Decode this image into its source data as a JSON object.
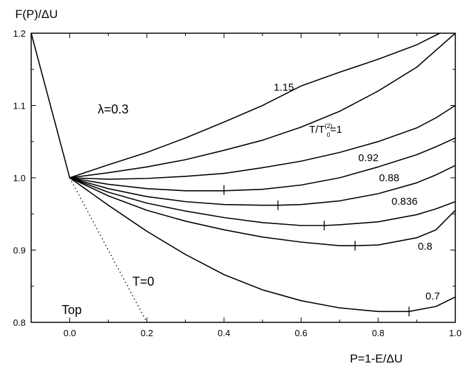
{
  "chart_data": {
    "type": "line",
    "ylabel": "F(P)/ΔU",
    "xlabel": "P=1-E/ΔU",
    "xlim": [
      -0.1,
      1.0
    ],
    "ylim": [
      0.8,
      1.2
    ],
    "xticks": [
      "0.0",
      "0.2",
      "0.4",
      "0.6",
      "0.8",
      "1.0"
    ],
    "yticks": [
      "0.8",
      "0.9",
      "1.0",
      "1.1",
      "1.2"
    ],
    "grid": false,
    "annotations": {
      "lambda": "λ=0.3",
      "t_zero": "T=0",
      "top": "Top",
      "ratio_pre": "T/T",
      "ratio_sup": "(2)",
      "ratio_sub": "0",
      "ratio_post": "=1"
    },
    "apex_line": {
      "x": [
        -0.1,
        0.0
      ],
      "y": [
        1.2,
        1.0
      ]
    },
    "t0_line": {
      "x": [
        0.0,
        0.2
      ],
      "y": [
        1.0,
        0.8
      ]
    },
    "series": [
      {
        "label": "1.15",
        "x": [
          0.0,
          0.1,
          0.2,
          0.3,
          0.4,
          0.5,
          0.6,
          0.7,
          0.8,
          0.9,
          0.96
        ],
        "y": [
          1.0,
          1.018,
          1.035,
          1.055,
          1.077,
          1.1,
          1.127,
          1.146,
          1.164,
          1.184,
          1.2
        ]
      },
      {
        "label": "",
        "x": [
          0.0,
          0.1,
          0.2,
          0.3,
          0.4,
          0.5,
          0.6,
          0.7,
          0.8,
          0.9,
          1.0
        ],
        "y": [
          1.0,
          1.007,
          1.015,
          1.025,
          1.038,
          1.052,
          1.07,
          1.092,
          1.12,
          1.153,
          1.2
        ]
      },
      {
        "label": "0.92",
        "x": [
          0.0,
          0.1,
          0.2,
          0.3,
          0.4,
          0.5,
          0.6,
          0.7,
          0.8,
          0.9,
          0.95,
          1.0
        ],
        "y": [
          1.0,
          0.998,
          0.999,
          1.002,
          1.006,
          1.014,
          1.023,
          1.035,
          1.05,
          1.069,
          1.083,
          1.1
        ]
      },
      {
        "label": "0.88",
        "x": [
          0.0,
          0.1,
          0.2,
          0.3,
          0.4,
          0.5,
          0.6,
          0.7,
          0.8,
          0.9,
          0.95,
          1.0
        ],
        "y": [
          1.0,
          0.991,
          0.985,
          0.982,
          0.982,
          0.984,
          0.99,
          1.0,
          1.015,
          1.032,
          1.043,
          1.055
        ]
      },
      {
        "label": "0.836",
        "x": [
          0.0,
          0.1,
          0.2,
          0.3,
          0.4,
          0.5,
          0.54,
          0.6,
          0.7,
          0.8,
          0.9,
          0.95,
          1.0
        ],
        "y": [
          1.0,
          0.985,
          0.974,
          0.967,
          0.963,
          0.962,
          0.962,
          0.963,
          0.968,
          0.978,
          0.993,
          1.004,
          1.017
        ]
      },
      {
        "label": "0.8",
        "x": [
          0.0,
          0.1,
          0.2,
          0.3,
          0.4,
          0.5,
          0.6,
          0.66,
          0.7,
          0.8,
          0.9,
          0.95,
          1.0
        ],
        "y": [
          1.0,
          0.98,
          0.965,
          0.954,
          0.945,
          0.938,
          0.934,
          0.934,
          0.935,
          0.939,
          0.949,
          0.957,
          0.967
        ]
      },
      {
        "label": "",
        "x": [
          0.0,
          0.1,
          0.2,
          0.3,
          0.4,
          0.5,
          0.6,
          0.7,
          0.74,
          0.8,
          0.9,
          0.95,
          1.0
        ],
        "y": [
          1.0,
          0.975,
          0.955,
          0.94,
          0.928,
          0.918,
          0.911,
          0.906,
          0.906,
          0.907,
          0.917,
          0.928,
          0.955
        ]
      },
      {
        "label": "0.7",
        "x": [
          0.0,
          0.1,
          0.2,
          0.3,
          0.4,
          0.5,
          0.6,
          0.7,
          0.8,
          0.88,
          0.95,
          1.0
        ],
        "y": [
          1.0,
          0.962,
          0.926,
          0.894,
          0.866,
          0.845,
          0.83,
          0.82,
          0.815,
          0.815,
          0.822,
          0.835
        ]
      }
    ],
    "minima": [
      {
        "x": 0.4,
        "y": 0.983
      },
      {
        "x": 0.54,
        "y": 0.962
      },
      {
        "x": 0.66,
        "y": 0.934
      },
      {
        "x": 0.74,
        "y": 0.906
      },
      {
        "x": 0.88,
        "y": 0.815
      }
    ]
  }
}
